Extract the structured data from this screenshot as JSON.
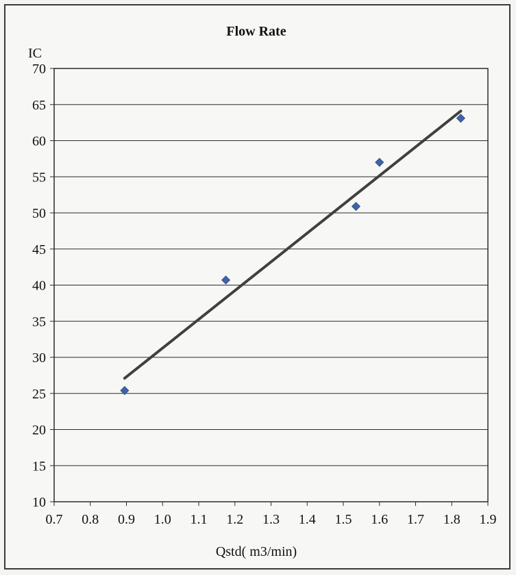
{
  "chart_data": {
    "type": "scatter",
    "title": "Flow Rate",
    "xlabel": "Qstd( m3/min)",
    "ylabel": "IC",
    "xlim": [
      0.7,
      1.9
    ],
    "ylim": [
      10,
      70
    ],
    "x_ticks": [
      "0.7",
      "0.8",
      "0.9",
      "1.0",
      "1.1",
      "1.2",
      "1.3",
      "1.4",
      "1.5",
      "1.6",
      "1.7",
      "1.8",
      "1.9"
    ],
    "y_ticks": [
      "10",
      "15",
      "20",
      "25",
      "30",
      "35",
      "40",
      "45",
      "50",
      "55",
      "60",
      "65",
      "70"
    ],
    "grid": "horizontal",
    "legend": "none",
    "series": [
      {
        "kind": "points",
        "marker": "diamond",
        "color": "#3e64a8",
        "points": [
          {
            "x": 0.895,
            "y": 25.4
          },
          {
            "x": 1.175,
            "y": 40.7
          },
          {
            "x": 1.535,
            "y": 50.9
          },
          {
            "x": 1.6,
            "y": 57.0
          },
          {
            "x": 1.825,
            "y": 63.1
          }
        ]
      },
      {
        "kind": "trendline",
        "color": "#404040",
        "x": [
          0.895,
          1.825
        ],
        "y": [
          27.1,
          64.1
        ]
      }
    ]
  }
}
